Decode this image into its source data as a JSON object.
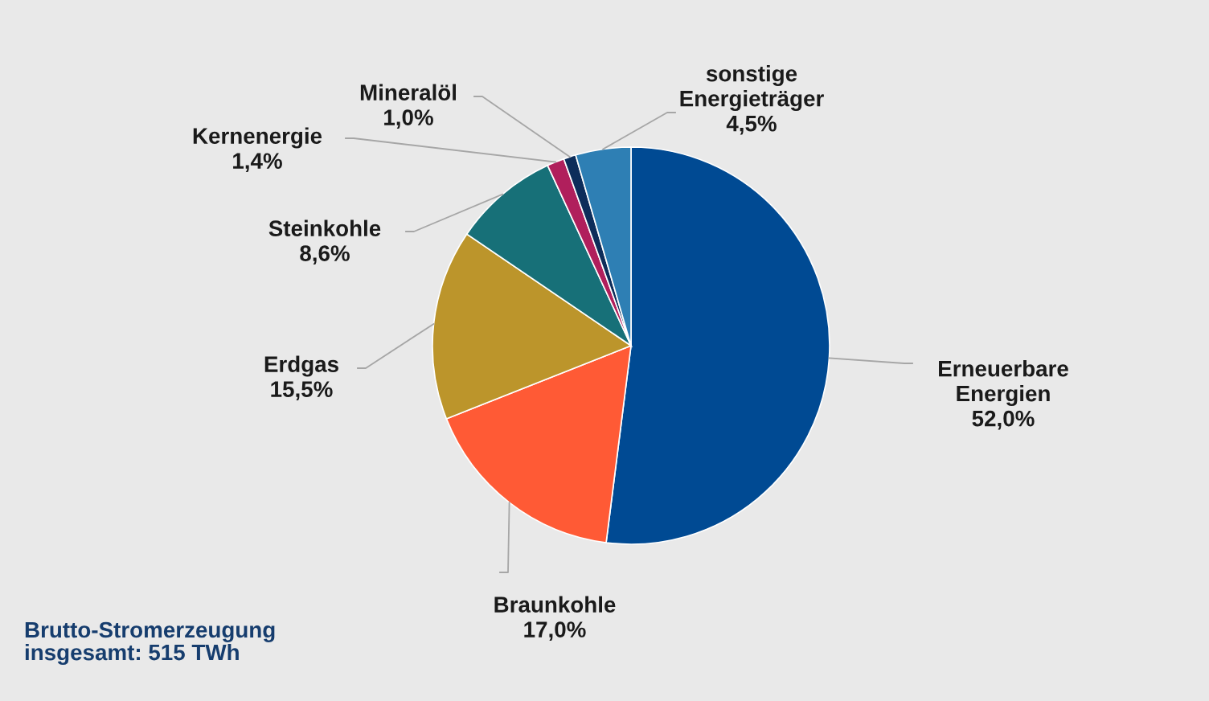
{
  "chart_data": {
    "type": "pie",
    "categories": [
      "Erneuerbare\nEnergien",
      "Braunkohle",
      "Erdgas",
      "Steinkohle",
      "Kernenergie",
      "Mineralöl",
      "sonstige\nEnergieträger"
    ],
    "values": [
      52.0,
      17.0,
      15.5,
      8.6,
      1.4,
      1.0,
      4.5
    ],
    "colors": [
      "#004a93",
      "#ff5a35",
      "#bc952b",
      "#177078",
      "#b01f5c",
      "#0d2d5a",
      "#2e7fb4"
    ],
    "value_labels": [
      "52,0%",
      "17,0%",
      "15,5%",
      "8,6%",
      "1,4%",
      "1,0%",
      "4,5%"
    ],
    "annotations": [
      "Brutto-Stromerzeugung\ninsgesamt: 515 TWh"
    ]
  }
}
